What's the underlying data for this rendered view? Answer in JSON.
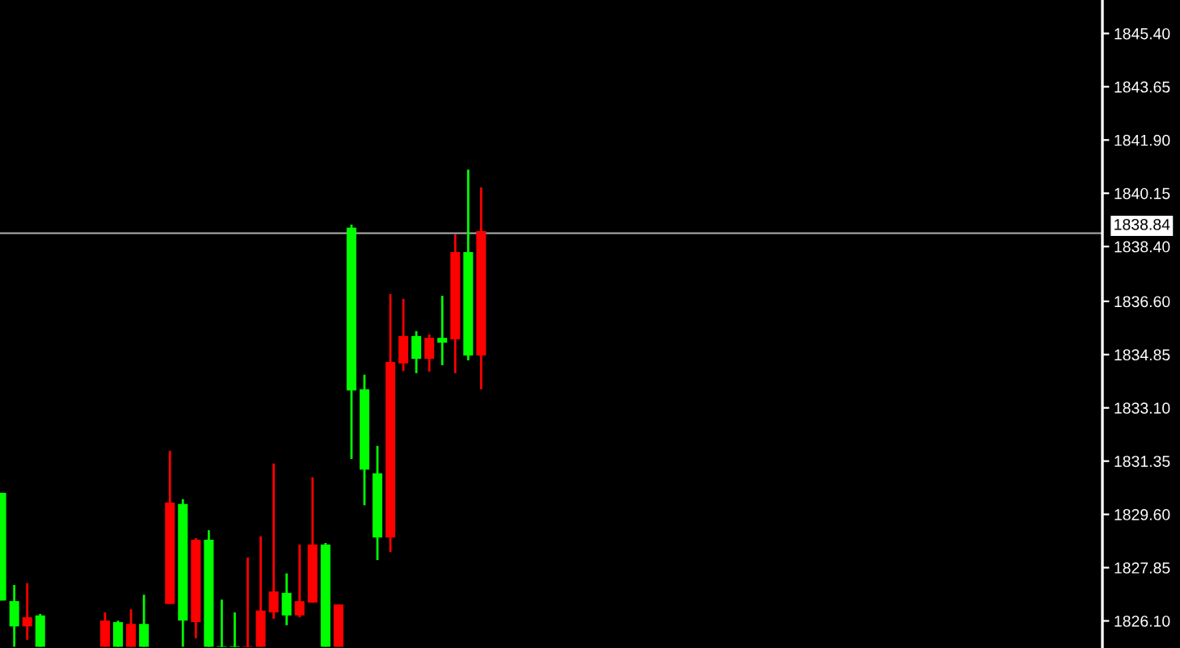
{
  "chart_data": {
    "type": "candlestick",
    "categories": [
      null,
      null,
      null,
      null,
      null,
      null,
      null,
      null,
      null,
      null,
      null,
      null,
      null,
      null,
      null,
      null,
      null,
      null,
      null,
      null,
      null,
      null,
      null,
      null,
      null,
      null,
      null,
      null,
      null,
      null,
      null,
      null,
      null,
      null,
      null,
      null,
      null,
      null,
      null,
      null,
      null,
      null,
      null,
      null,
      null,
      null,
      null,
      null,
      null,
      null,
      null,
      null,
      null,
      null,
      null,
      null,
      null,
      null,
      null,
      null,
      null,
      null,
      null,
      null,
      null,
      null,
      null,
      null,
      null,
      null,
      null,
      null,
      null,
      null,
      null,
      null,
      null,
      null,
      null,
      null,
      null,
      null,
      null,
      null,
      null
    ],
    "ohlc": [
      [
        1826.77,
        1830.31,
        1826.77,
        1830.31
      ],
      [
        1825.92,
        1827.28,
        1825.25,
        1826.75
      ],
      [
        1826.22,
        1827.34,
        1825.48,
        1825.92
      ],
      [
        1825.25,
        1826.33,
        1825.25,
        1826.28
      ],
      null,
      null,
      null,
      null,
      [
        1826.11,
        1826.38,
        1825.25,
        1825.25
      ],
      [
        1825.25,
        1826.11,
        1825.25,
        1826.06
      ],
      [
        1826.0,
        1826.48,
        1825.25,
        1825.25
      ],
      [
        1825.25,
        1826.96,
        1825.25,
        1826.0
      ],
      null,
      [
        1829.99,
        1831.69,
        1826.66,
        1826.66
      ],
      [
        1826.11,
        1830.1,
        1825.25,
        1829.94
      ],
      [
        1828.77,
        1828.82,
        1825.53,
        1826.06
      ],
      [
        1825.25,
        1829.08,
        1825.25,
        1828.77
      ],
      [
        1825.25,
        1826.8,
        1825.25,
        1825.25
      ],
      [
        1825.25,
        1826.38,
        1825.25,
        1825.25
      ],
      [
        1825.25,
        1828.18,
        1825.25,
        1825.25
      ],
      [
        1826.44,
        1828.88,
        1825.25,
        1825.25
      ],
      [
        1827.07,
        1831.27,
        1826.17,
        1826.38
      ],
      [
        1826.28,
        1827.66,
        1825.96,
        1827.02
      ],
      [
        1826.75,
        1828.61,
        1826.22,
        1826.28
      ],
      [
        1828.61,
        1830.82,
        1826.7,
        1826.7
      ],
      [
        1825.25,
        1828.66,
        1825.25,
        1828.61
      ],
      [
        1826.64,
        1826.64,
        1825.25,
        1825.25
      ],
      [
        1833.67,
        1839.12,
        1831.42,
        1839.02
      ],
      [
        1831.07,
        1834.19,
        1829.9,
        1833.71
      ],
      [
        1828.84,
        1831.85,
        1828.1,
        1830.95
      ],
      [
        1834.61,
        1836.84,
        1828.36,
        1828.84
      ],
      [
        1835.46,
        1836.68,
        1834.31,
        1834.56
      ],
      [
        1834.71,
        1835.62,
        1834.24,
        1835.46
      ],
      [
        1835.4,
        1835.51,
        1834.29,
        1834.71
      ],
      [
        1835.24,
        1836.78,
        1834.5,
        1835.4
      ],
      [
        1838.22,
        1838.8,
        1834.24,
        1835.35
      ],
      [
        1834.82,
        1840.93,
        1834.66,
        1838.22
      ],
      [
        1838.91,
        1840.34,
        1833.71,
        1834.82
      ],
      null,
      null,
      null,
      null,
      null,
      null,
      null,
      null,
      null,
      null,
      null,
      null,
      null,
      null,
      null,
      null,
      null,
      null,
      null,
      null,
      null,
      null,
      null,
      null,
      null,
      null,
      null,
      null,
      null,
      null,
      null,
      null,
      null,
      null,
      null,
      null,
      null,
      null,
      null,
      null,
      null,
      null,
      null,
      null,
      null,
      null,
      null
    ],
    "colors": [
      "#00ff00",
      "#00ff00",
      "#ff0000",
      "#00ff00",
      null,
      null,
      null,
      null,
      "#ff0000",
      "#00ff00",
      "#ff0000",
      "#00ff00",
      null,
      "#ff0000",
      "#00ff00",
      "#ff0000",
      "#00ff00",
      "#00ff00",
      "#00ff00",
      "#ff0000",
      "#ff0000",
      "#ff0000",
      "#00ff00",
      "#ff0000",
      "#ff0000",
      "#00ff00",
      "#ff0000",
      "#00ff00",
      "#00ff00",
      "#00ff00",
      "#ff0000",
      "#ff0000",
      "#00ff00",
      "#ff0000",
      "#00ff00",
      "#ff0000",
      "#00ff00",
      "#ff0000",
      null,
      null,
      null,
      null,
      null,
      null,
      null,
      null,
      null,
      null,
      null,
      null,
      null,
      null,
      null,
      null,
      null,
      null,
      null,
      null,
      null,
      null,
      null,
      null,
      null,
      null,
      null,
      null,
      null,
      null,
      null,
      null,
      null,
      null,
      null,
      null,
      null,
      null,
      null,
      null,
      null,
      null,
      null,
      null,
      null,
      null,
      null
    ],
    "ylim": [
      1825.21,
      1846.5
    ],
    "yticks": [
      {
        "value": 1845.4,
        "label": "1845.40"
      },
      {
        "value": 1843.65,
        "label": "1843.65"
      },
      {
        "value": 1841.9,
        "label": "1841.90"
      },
      {
        "value": 1840.15,
        "label": "1840.15"
      },
      {
        "value": 1838.4,
        "label": "1838.40"
      },
      {
        "value": 1836.6,
        "label": "1836.60"
      },
      {
        "value": 1834.85,
        "label": "1834.85"
      },
      {
        "value": 1833.1,
        "label": "1833.10"
      },
      {
        "value": 1831.35,
        "label": "1831.35"
      },
      {
        "value": 1829.6,
        "label": "1829.60"
      },
      {
        "value": 1827.85,
        "label": "1827.85"
      },
      {
        "value": 1826.1,
        "label": "1826.10"
      }
    ],
    "ref_lines": [
      {
        "axis": "y",
        "value": 1838.84,
        "label": "1838.84",
        "color": "#a0a0a0"
      }
    ],
    "tick_labels": "y",
    "grid": false
  }
}
